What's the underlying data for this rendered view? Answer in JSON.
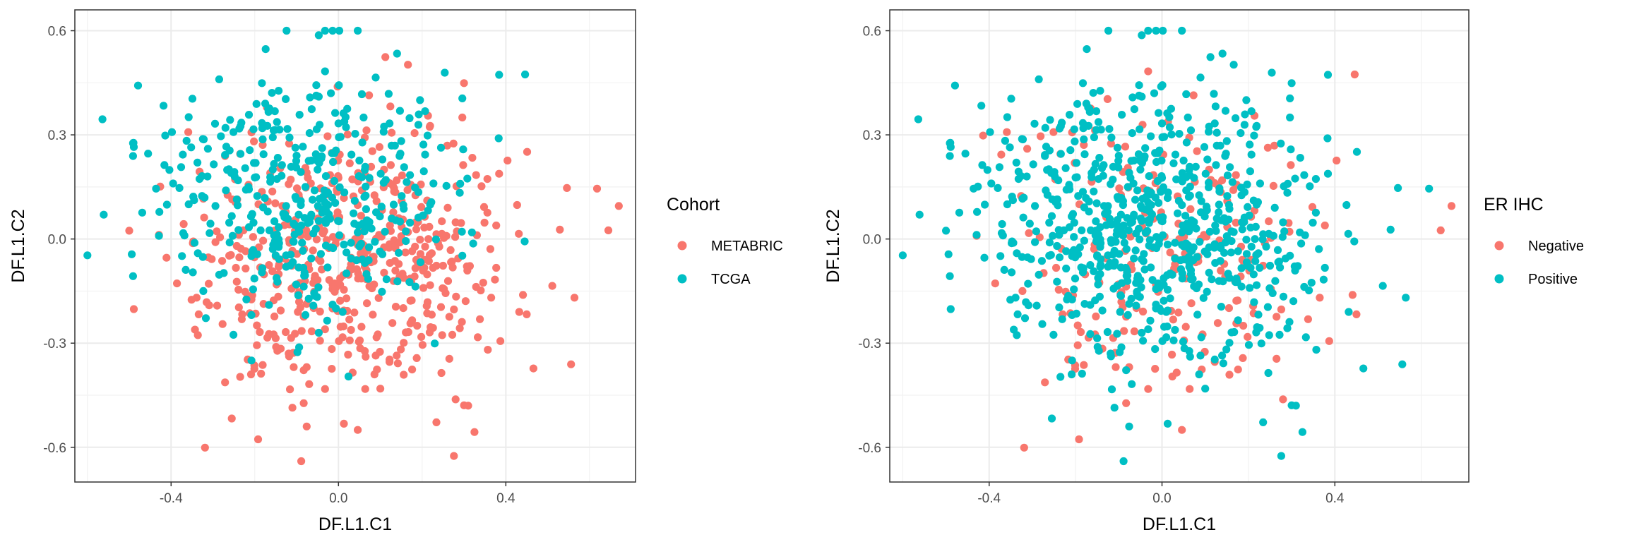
{
  "chart_data": [
    {
      "type": "scatter",
      "xlabel": "DF.L1.C1",
      "ylabel": "DF.L1.C2",
      "xlim": [
        -0.63,
        0.71
      ],
      "ylim": [
        -0.7,
        0.66
      ],
      "x_ticks": [
        -0.4,
        0.0,
        0.4
      ],
      "x_tick_labels": [
        "-0.4",
        "0.0",
        "0.4"
      ],
      "y_ticks": [
        -0.6,
        -0.3,
        0.0,
        0.3,
        0.6
      ],
      "y_tick_labels": [
        "-0.6",
        "-0.3",
        "0.0",
        "0.3",
        "0.6"
      ],
      "grid": true,
      "legend": {
        "title": "Cohort",
        "placement": "right",
        "entries": [
          {
            "label": "METABRIC",
            "color": "#F8766D"
          },
          {
            "label": "TCGA",
            "color": "#00BFC4"
          }
        ]
      },
      "series": [
        {
          "name": "METABRIC",
          "color": "#F8766D",
          "x": [],
          "y": []
        },
        {
          "name": "TCGA",
          "color": "#00BFC4",
          "x": [],
          "y": []
        }
      ]
    },
    {
      "type": "scatter",
      "xlabel": "DF.L1.C1",
      "ylabel": "DF.L1.C2",
      "xlim": [
        -0.63,
        0.71
      ],
      "ylim": [
        -0.7,
        0.66
      ],
      "x_ticks": [
        -0.4,
        0.0,
        0.4
      ],
      "x_tick_labels": [
        "-0.4",
        "0.0",
        "0.4"
      ],
      "y_ticks": [
        -0.6,
        -0.3,
        0.0,
        0.3,
        0.6
      ],
      "y_tick_labels": [
        "-0.6",
        "-0.3",
        "0.0",
        "0.3",
        "0.6"
      ],
      "grid": true,
      "legend": {
        "title": "ER IHC",
        "placement": "right",
        "entries": [
          {
            "label": "Negative",
            "color": "#F8766D"
          },
          {
            "label": "Positive",
            "color": "#00BFC4"
          }
        ]
      },
      "series": [
        {
          "name": "Negative",
          "color": "#F8766D",
          "x": [],
          "y": []
        },
        {
          "name": "Positive",
          "color": "#00BFC4",
          "x": [],
          "y": []
        }
      ]
    }
  ]
}
